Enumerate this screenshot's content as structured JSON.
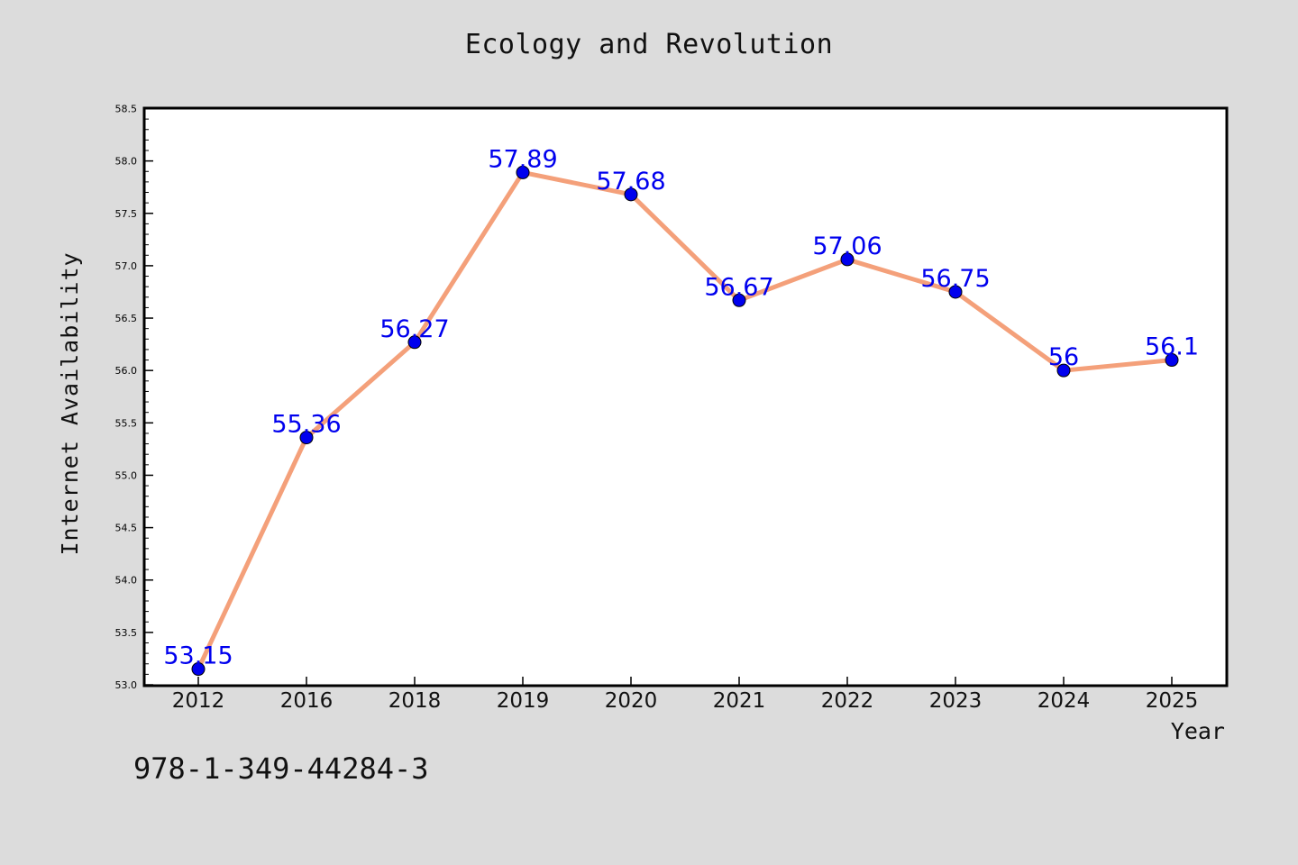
{
  "title": "Ecology and Revolution",
  "footer_text": "978-1-349-44284-3",
  "chart_data": {
    "type": "line",
    "title": "Ecology and Revolution",
    "xlabel": "Year",
    "ylabel": "Internet Availability",
    "categories": [
      "2012",
      "2016",
      "2018",
      "2019",
      "2020",
      "2021",
      "2022",
      "2023",
      "2024",
      "2025"
    ],
    "values": [
      53.15,
      55.36,
      56.27,
      57.89,
      57.68,
      56.67,
      57.06,
      56.75,
      56,
      56.1
    ],
    "data_labels": [
      "53.15",
      "55.36",
      "56.27",
      "57.89",
      "57.68",
      "56.67",
      "57.06",
      "56.75",
      "56",
      "56.1"
    ],
    "ylim": [
      53.0,
      58.5
    ],
    "yticks": [
      "53.0",
      "53.5",
      "54.0",
      "54.5",
      "55.0",
      "55.5",
      "56.0",
      "56.5",
      "57.0",
      "57.5",
      "58.0",
      "58.5"
    ],
    "grid": false,
    "line_color": "#f4a07a",
    "marker_color": "#0000ee",
    "label_color": "#0000ee"
  }
}
